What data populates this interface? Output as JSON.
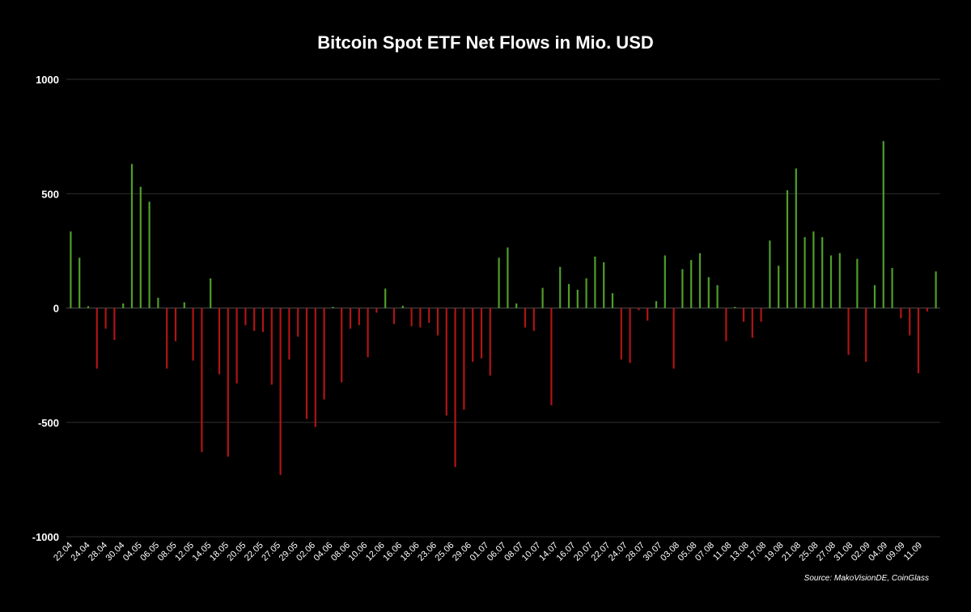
{
  "chart_data": {
    "type": "bar",
    "title": "Bitcoin Spot ETF Net Flows in Mio. USD",
    "ylim": [
      -1000,
      1000
    ],
    "yticks": [
      "1000",
      "500",
      "0",
      "-500",
      "-1000"
    ],
    "ytick_values": [
      1000,
      500,
      0,
      -500,
      -1000
    ],
    "grid": true,
    "colors": {
      "positive": "#4f9e2a",
      "negative": "#b01515",
      "background": "#000000"
    },
    "x_tick_labels": [
      "22.04",
      "24.04",
      "28.04",
      "30.04",
      "04.05",
      "06.05",
      "08.05",
      "12.05",
      "14.05",
      "18.05",
      "20.05",
      "22.05",
      "27.05",
      "29.05",
      "02.06",
      "04.06",
      "08.06",
      "10.06",
      "12.06",
      "16.06",
      "18.06",
      "23.06",
      "25.06",
      "29.06",
      "01.07",
      "06.07",
      "08.07",
      "10.07",
      "14.07",
      "16.07",
      "20.07",
      "22.07",
      "24.07",
      "28.07",
      "30.07",
      "03.08",
      "05.08",
      "07.08",
      "11.08",
      "13.08",
      "17.08",
      "19.08",
      "21.08",
      "25.08",
      "27.08",
      "31.08",
      "02.09",
      "04.09",
      "09.09",
      "11.09"
    ],
    "values": [
      335,
      220,
      8,
      -265,
      -90,
      -140,
      20,
      630,
      530,
      465,
      45,
      -265,
      -145,
      25,
      -230,
      -630,
      130,
      -290,
      -650,
      -330,
      -75,
      -100,
      -105,
      -335,
      -730,
      -225,
      -125,
      -485,
      -520,
      -400,
      5,
      -325,
      -90,
      -75,
      -215,
      -20,
      85,
      -70,
      10,
      -80,
      -85,
      -65,
      -120,
      -470,
      -695,
      -445,
      -235,
      -220,
      -295,
      220,
      265,
      20,
      -85,
      -100,
      88,
      -425,
      180,
      105,
      80,
      130,
      225,
      200,
      65,
      -225,
      -240,
      -10,
      -55,
      30,
      230,
      -265,
      170,
      210,
      240,
      135,
      100,
      -145,
      5,
      -60,
      -130,
      -60,
      295,
      185,
      515,
      610,
      310,
      335,
      310,
      230,
      240,
      -205,
      215,
      -235,
      100,
      730,
      175,
      -45,
      -120,
      -285,
      -15,
      160
    ]
  },
  "source": "Source: MakoVisionDE, CoinGlass"
}
